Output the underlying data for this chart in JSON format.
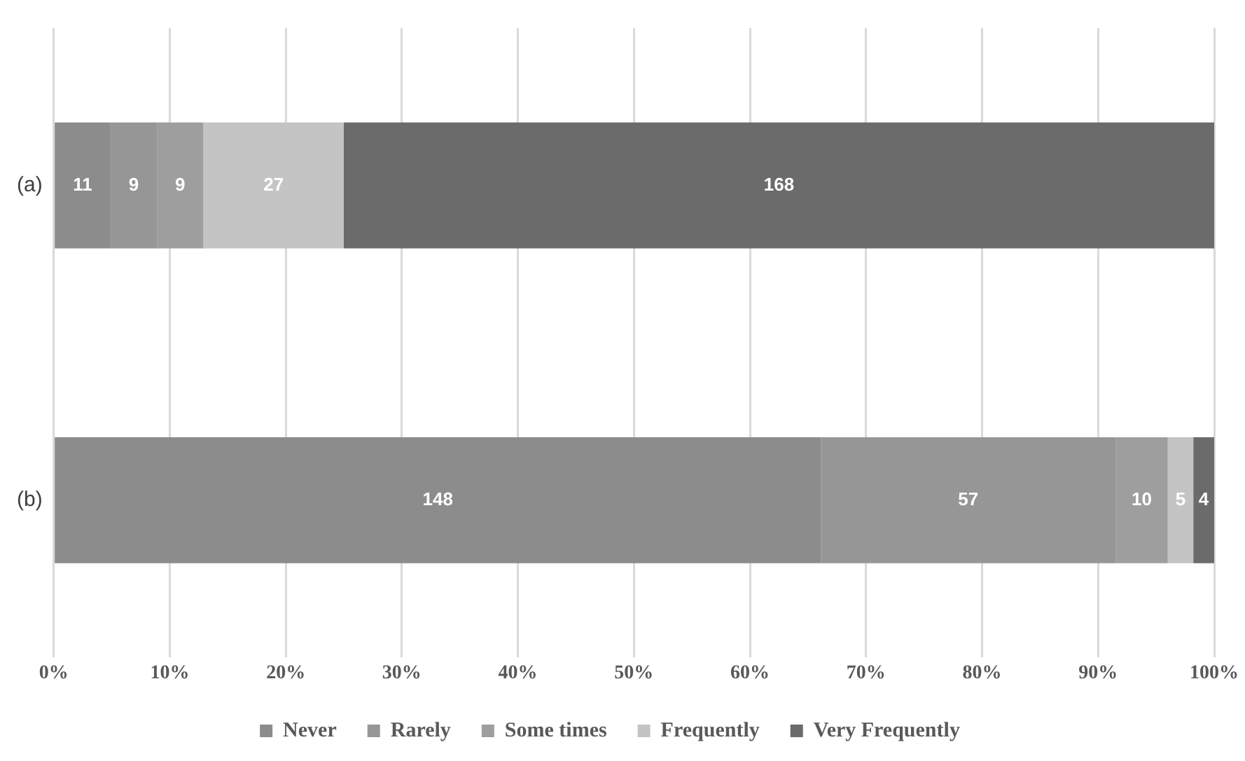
{
  "chart_data": {
    "type": "bar",
    "orientation": "horizontal",
    "stacked": true,
    "categories": [
      "(a)",
      "(b)"
    ],
    "series": [
      {
        "name": "Never",
        "color": "#8c8c8c",
        "values": [
          4.9,
          66.1
        ]
      },
      {
        "name": "Rarely",
        "color": "#969696",
        "values": [
          4.0,
          25.4
        ]
      },
      {
        "name": "Some times",
        "color": "#9e9e9e",
        "values": [
          4.0,
          4.5
        ]
      },
      {
        "name": "Frequently",
        "color": "#c4c4c4",
        "values": [
          12.1,
          2.2
        ]
      },
      {
        "name": "Very Frequently",
        "color": "#6b6b6b",
        "values": [
          75.0,
          1.8
        ]
      }
    ],
    "annotations": [
      "11",
      "9",
      "9",
      "27",
      "168",
      "148",
      "57",
      "10",
      "5",
      "4"
    ],
    "xlim": [
      0,
      100
    ],
    "xticks": [
      {
        "value": 0,
        "label": "0%"
      },
      {
        "value": 10,
        "label": "10%"
      },
      {
        "value": 20,
        "label": "20%"
      },
      {
        "value": 30,
        "label": "30%"
      },
      {
        "value": 40,
        "label": "40%"
      },
      {
        "value": 50,
        "label": "50%"
      },
      {
        "value": 60,
        "label": "60%"
      },
      {
        "value": 70,
        "label": "70%"
      },
      {
        "value": 80,
        "label": "80%"
      },
      {
        "value": 90,
        "label": "90%"
      },
      {
        "value": 100,
        "label": "100%"
      }
    ],
    "grid": "x",
    "legend": "bottom"
  }
}
